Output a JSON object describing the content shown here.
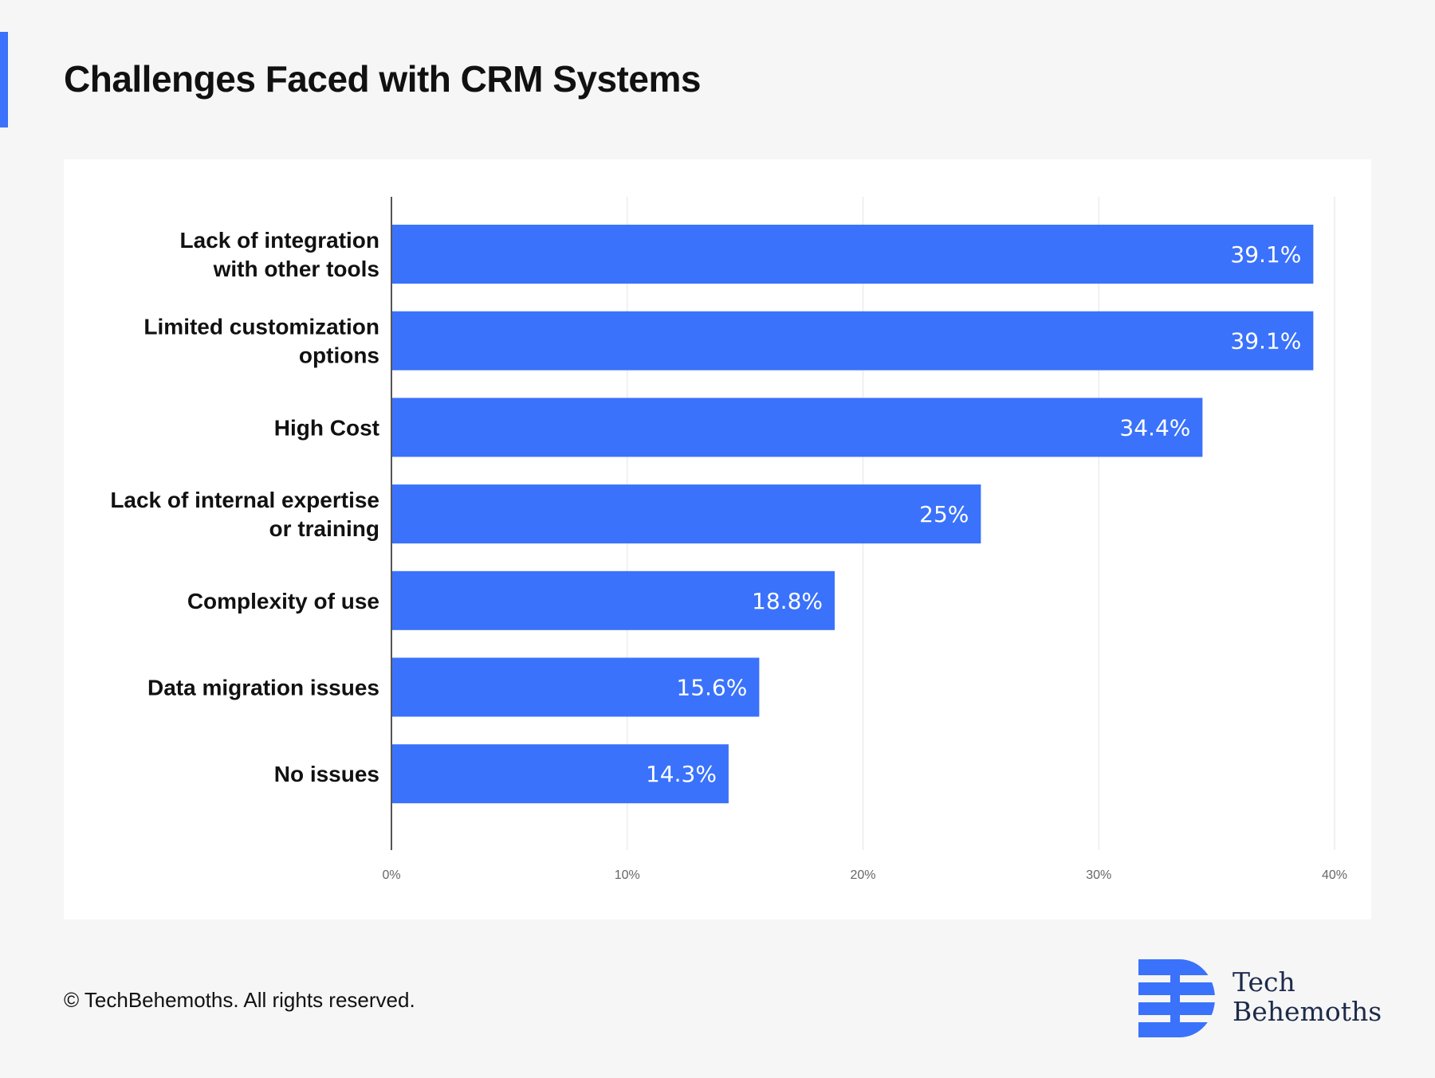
{
  "title": "Challenges Faced with CRM Systems",
  "footer": {
    "copyright": "© TechBehemoths. All rights reserved.",
    "logo_line1": "Tech",
    "logo_line2": "Behemoths",
    "logo_icon": "techbehemoths-logo-icon"
  },
  "colors": {
    "accent": "#3a72fb",
    "bar": "#3a72fb",
    "background": "#f6f6f6",
    "card": "#ffffff"
  },
  "chart_data": {
    "type": "bar",
    "orientation": "horizontal",
    "title": "Challenges Faced with CRM Systems",
    "categories": [
      [
        "Lack of integration",
        "with other tools"
      ],
      [
        "Limited customization",
        "options"
      ],
      [
        "High Cost"
      ],
      [
        "Lack of internal expertise",
        "or training"
      ],
      [
        "Complexity of use"
      ],
      [
        "Data migration issues"
      ],
      [
        "No issues"
      ]
    ],
    "values": [
      39.1,
      39.1,
      34.4,
      25,
      18.8,
      15.6,
      14.3
    ],
    "value_labels": [
      "39.1%",
      "39.1%",
      "34.4%",
      "25%",
      "18.8%",
      "15.6%",
      "14.3%"
    ],
    "xlim": [
      0,
      40
    ],
    "ticks": [
      0,
      10,
      20,
      30,
      40
    ],
    "tick_labels": [
      "0%",
      "10%",
      "20%",
      "30%",
      "40%"
    ],
    "grid": true,
    "xlabel": "",
    "ylabel": ""
  }
}
